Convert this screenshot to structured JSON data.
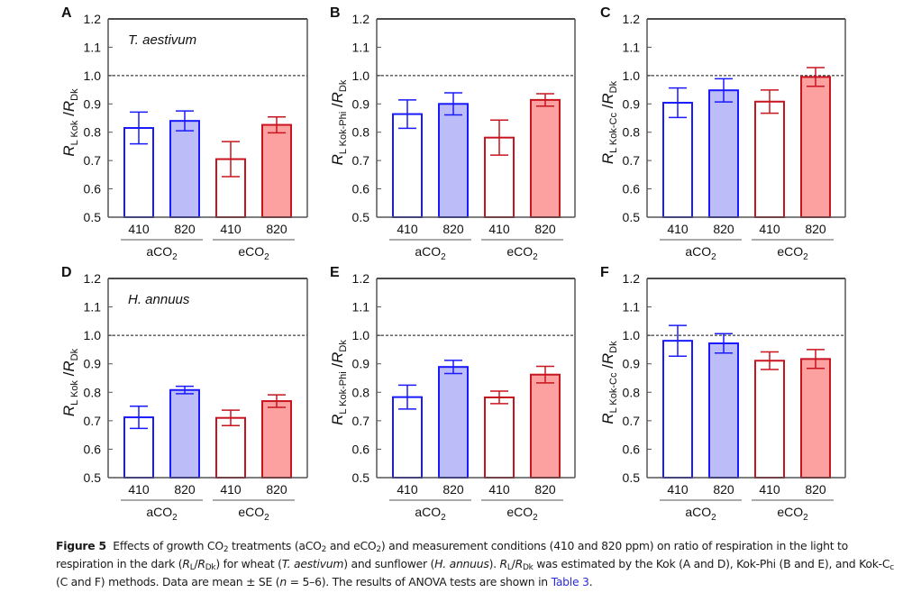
{
  "chart_data": [
    {
      "panel": "A",
      "type": "bar",
      "species_label": "T. aestivum",
      "ylabel_main": "R",
      "ylabel_sub": "L Kok",
      "ylabel_den": "R",
      "ylabel_den_sub": "Dk",
      "ylim": [
        0.5,
        1.2
      ],
      "yticks": [
        "0.5",
        "0.6",
        "0.7",
        "0.8",
        "0.9",
        "1.0",
        "1.1",
        "1.2"
      ],
      "reference_line": 1.0,
      "categories": [
        "410",
        "820",
        "410",
        "820"
      ],
      "groups": [
        "aCO2",
        "eCO2"
      ],
      "values": [
        0.815,
        0.84,
        0.705,
        0.826
      ],
      "errors": [
        0.056,
        0.035,
        0.062,
        0.028
      ]
    },
    {
      "panel": "B",
      "type": "bar",
      "species_label": "",
      "ylabel_main": "R",
      "ylabel_sub": "L Kok-Phi",
      "ylabel_den": "R",
      "ylabel_den_sub": "Dk",
      "ylim": [
        0.5,
        1.2
      ],
      "yticks": [
        "0.5",
        "0.6",
        "0.7",
        "0.8",
        "0.9",
        "1.0",
        "1.1",
        "1.2"
      ],
      "reference_line": 1.0,
      "categories": [
        "410",
        "820",
        "410",
        "820"
      ],
      "groups": [
        "aCO2",
        "eCO2"
      ],
      "values": [
        0.864,
        0.9,
        0.781,
        0.914
      ],
      "errors": [
        0.05,
        0.039,
        0.062,
        0.022
      ]
    },
    {
      "panel": "C",
      "type": "bar",
      "species_label": "",
      "ylabel_main": "R",
      "ylabel_sub": "L Kok-Cc",
      "ylabel_den": "R",
      "ylabel_den_sub": "Dk",
      "ylim": [
        0.5,
        1.2
      ],
      "yticks": [
        "0.5",
        "0.6",
        "0.7",
        "0.8",
        "0.9",
        "1.0",
        "1.1",
        "1.2"
      ],
      "reference_line": 1.0,
      "categories": [
        "410",
        "820",
        "410",
        "820"
      ],
      "groups": [
        "aCO2",
        "eCO2"
      ],
      "values": [
        0.904,
        0.948,
        0.908,
        0.995
      ],
      "errors": [
        0.052,
        0.041,
        0.041,
        0.033
      ]
    },
    {
      "panel": "D",
      "type": "bar",
      "species_label": "H. annuus",
      "ylabel_main": "R",
      "ylabel_sub": "L Kok",
      "ylabel_den": "R",
      "ylabel_den_sub": "Dk",
      "ylim": [
        0.5,
        1.2
      ],
      "yticks": [
        "0.5",
        "0.6",
        "0.7",
        "0.8",
        "0.9",
        "1.0",
        "1.1",
        "1.2"
      ],
      "reference_line": 1.0,
      "categories": [
        "410",
        "820",
        "410",
        "820"
      ],
      "groups": [
        "aCO2",
        "eCO2"
      ],
      "values": [
        0.712,
        0.808,
        0.71,
        0.769
      ],
      "errors": [
        0.039,
        0.013,
        0.027,
        0.022
      ]
    },
    {
      "panel": "E",
      "type": "bar",
      "species_label": "",
      "ylabel_main": "R",
      "ylabel_sub": "L Kok-Phi",
      "ylabel_den": "R",
      "ylabel_den_sub": "Dk",
      "ylim": [
        0.5,
        1.2
      ],
      "yticks": [
        "0.5",
        "0.6",
        "0.7",
        "0.8",
        "0.9",
        "1.0",
        "1.1",
        "1.2"
      ],
      "reference_line": 1.0,
      "categories": [
        "410",
        "820",
        "410",
        "820"
      ],
      "groups": [
        "aCO2",
        "eCO2"
      ],
      "values": [
        0.783,
        0.889,
        0.782,
        0.862
      ],
      "errors": [
        0.042,
        0.023,
        0.022,
        0.029
      ]
    },
    {
      "panel": "F",
      "type": "bar",
      "species_label": "",
      "ylabel_main": "R",
      "ylabel_sub": "L Kok-Cc",
      "ylabel_den": "R",
      "ylabel_den_sub": "Dk",
      "ylim": [
        0.5,
        1.2
      ],
      "yticks": [
        "0.5",
        "0.6",
        "0.7",
        "0.8",
        "0.9",
        "1.0",
        "1.1",
        "1.2"
      ],
      "reference_line": 1.0,
      "categories": [
        "410",
        "820",
        "410",
        "820"
      ],
      "groups": [
        "aCO2",
        "eCO2"
      ],
      "values": [
        0.981,
        0.972,
        0.911,
        0.917
      ],
      "errors": [
        0.054,
        0.034,
        0.031,
        0.033
      ]
    }
  ],
  "colors": {
    "aco2_stroke": "#1a1aff",
    "aco2_fill": "#bcbcf8",
    "eco2_stroke": "#c8141e",
    "eco2_fill": "#fda0a0",
    "link": "#2b2bd6"
  },
  "caption": {
    "label": "Figure 5",
    "part1": "Effects of growth CO",
    "part2": " treatments (aCO",
    "part3": " and eCO",
    "part4": ") and measurement conditions (410 and 820 ppm) on ratio of respiration in the light to respiration in the dark (",
    "part5": ") for wheat (",
    "species1": "T. aestivum",
    "part6": ") and sunflower (",
    "species2": "H. annuus",
    "part7": "). ",
    "part8": " was estimated by the Kok (A and D), Kok-Phi (B and E), and Kok-C",
    "part9": " (C and F) methods. Data are mean ± SE (",
    "n": "n",
    "part10": " = 5–6). The results of ANOVA tests are shown in ",
    "link_text": "Table 3",
    "part11": "."
  }
}
